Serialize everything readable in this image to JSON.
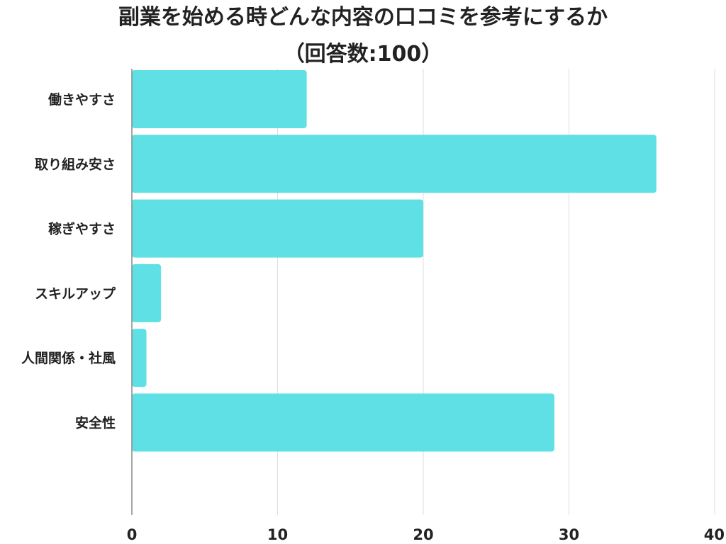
{
  "chart_data": {
    "type": "bar",
    "orientation": "horizontal",
    "title": "副業を始める時どんな内容の口コミを参考にするか",
    "subtitle": "（回答数:100）",
    "categories": [
      "働きやすさ",
      "取り組み安さ",
      "稼ぎやすさ",
      "スキルアップ",
      "人間関係・社風",
      "安全性"
    ],
    "values": [
      12,
      36,
      20,
      2,
      1,
      29
    ],
    "xlim": [
      0,
      40
    ],
    "xticks": [
      0,
      10,
      20,
      30,
      40
    ],
    "grid": true,
    "legend": "none",
    "bar_color": "#5ee0e4",
    "grid_color": "#dddddd",
    "axis_color": "#888888",
    "text_color": "#222222"
  }
}
